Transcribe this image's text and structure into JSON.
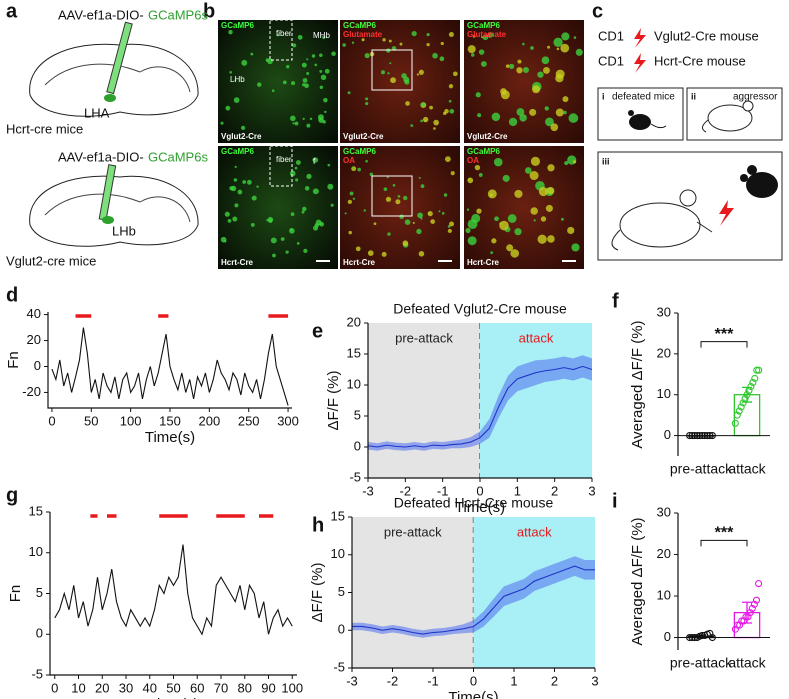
{
  "panel_labels": [
    "a",
    "b",
    "c",
    "d",
    "e",
    "f",
    "g",
    "h",
    "i"
  ],
  "panel_a": {
    "top_virus": "AAV-ef1a-DIO-",
    "top_indicator": "GCaMP6s",
    "top_region": "LHA",
    "top_mouse": "Hcrt-cre mice",
    "bottom_virus": "AAV-ef1a-DIO-",
    "bottom_indicator": "GCaMP6s",
    "bottom_region": "LHb",
    "bottom_mouse": "Vglut2-cre mice"
  },
  "panel_b": {
    "images": [
      {
        "labels": [
          "GCaMP6"
        ],
        "extra": [
          "fiber",
          "MHb",
          "LHb"
        ],
        "line": "Vglut2-Cre"
      },
      {
        "labels": [
          "GCaMP6",
          "Glutamate"
        ],
        "extra": [],
        "line": "Vglut2-Cre"
      },
      {
        "labels": [
          "GCaMP6",
          "Glutamate"
        ],
        "extra": [],
        "line": "Vglut2-Cre"
      },
      {
        "labels": [
          "GCaMP6"
        ],
        "extra": [
          "fiber",
          "f"
        ],
        "line": "Hcrt-Cre"
      },
      {
        "labels": [
          "GCaMP6",
          "OA"
        ],
        "extra": [],
        "line": "Hcrt-Cre"
      },
      {
        "labels": [
          "GCaMP6",
          "OA"
        ],
        "extra": [],
        "line": "Hcrt-Cre"
      }
    ]
  },
  "panel_c": {
    "row1_left": "CD1",
    "row1_right": "Vglut2-Cre mouse",
    "row2_left": "CD1",
    "row2_right": "Hcrt-Cre mouse",
    "box_i": "i",
    "box_i_text": "defeated mice",
    "box_ii": "ii",
    "box_ii_text": "aggressor",
    "box_iii": "iii"
  },
  "chart_data": [
    {
      "type": "line",
      "xlabel": "Time(s)",
      "ylabel": "Fn",
      "color": "#111111",
      "event_color": "#e8191c",
      "events": [
        [
          30,
          50
        ],
        [
          135,
          148
        ],
        [
          275,
          300
        ]
      ],
      "x": [
        0,
        5,
        10,
        15,
        20,
        25,
        30,
        35,
        40,
        45,
        50,
        55,
        60,
        65,
        70,
        75,
        80,
        85,
        90,
        95,
        100,
        105,
        110,
        115,
        120,
        125,
        130,
        135,
        140,
        145,
        150,
        155,
        160,
        165,
        170,
        175,
        180,
        185,
        190,
        195,
        200,
        205,
        210,
        215,
        220,
        225,
        230,
        235,
        240,
        245,
        250,
        255,
        260,
        265,
        270,
        275,
        280,
        285,
        290,
        295,
        300
      ],
      "values": [
        -2,
        -10,
        5,
        -15,
        -5,
        -20,
        -8,
        5,
        30,
        10,
        -20,
        -10,
        -25,
        -5,
        -15,
        -20,
        -8,
        -25,
        -10,
        -5,
        -20,
        -15,
        -5,
        -25,
        -10,
        0,
        -15,
        -5,
        10,
        25,
        0,
        -10,
        -18,
        -5,
        -20,
        -10,
        -25,
        -8,
        -15,
        -5,
        -20,
        -10,
        5,
        -5,
        -10,
        -18,
        -5,
        -10,
        -22,
        -5,
        -15,
        -20,
        -10,
        -25,
        -10,
        10,
        25,
        0,
        -10,
        -20,
        -30
      ],
      "xlim": [
        -5,
        305
      ],
      "xticks": [
        0,
        50,
        100,
        150,
        200,
        250,
        300
      ],
      "ylim": [
        -32,
        42
      ],
      "yticks": [
        -20,
        0,
        20,
        40
      ]
    },
    {
      "type": "line",
      "title": "Defeated Vglut2-Cre mouse",
      "xlabel": "Time(s)",
      "ylabel": "ΔF/F (%)",
      "color": "#1f35c8",
      "band_color": "#5a78f0",
      "regions": [
        {
          "label": "pre-attack",
          "range": [
            -3,
            0
          ],
          "color": "#e4e4e4",
          "label_color": "#222222"
        },
        {
          "label": "attack",
          "range": [
            0,
            3
          ],
          "color": "#a8f0f6",
          "label_color": "#e8191c"
        }
      ],
      "x": [
        -3,
        -2.75,
        -2.5,
        -2.25,
        -2,
        -1.75,
        -1.5,
        -1.25,
        -1,
        -0.75,
        -0.5,
        -0.25,
        0,
        0.25,
        0.5,
        0.75,
        1,
        1.25,
        1.5,
        1.75,
        2,
        2.25,
        2.5,
        2.75,
        3
      ],
      "values": [
        0.2,
        0,
        0.3,
        0.1,
        0,
        0.2,
        0,
        0.3,
        0.2,
        0.4,
        0.5,
        0.8,
        1.5,
        3,
        6.5,
        9.5,
        11,
        11.5,
        12,
        12.3,
        12.5,
        12.8,
        12.5,
        13,
        12.5
      ],
      "errors": [
        0.6,
        0.6,
        0.6,
        0.6,
        0.6,
        0.6,
        0.6,
        0.6,
        0.6,
        0.6,
        0.7,
        0.8,
        1,
        1.5,
        1.8,
        2,
        2,
        2,
        2,
        1.8,
        1.8,
        1.8,
        1.8,
        1.8,
        1.8
      ],
      "xlim": [
        -3,
        3
      ],
      "xticks": [
        -3,
        -2,
        -1,
        0,
        1,
        2,
        3
      ],
      "ylim": [
        -5,
        20
      ],
      "yticks": [
        -5,
        0,
        5,
        10,
        15,
        20
      ]
    },
    {
      "type": "bar",
      "ylabel": "Averaged ΔF/F (%)",
      "categories": [
        "pre-attack",
        "attack"
      ],
      "values": [
        0,
        10
      ],
      "errors": [
        0,
        1.8
      ],
      "colors": [
        "#111111",
        "#2ec82e"
      ],
      "significance": "***",
      "points": [
        [
          0,
          0,
          0,
          0,
          0,
          0,
          0,
          0,
          0,
          0
        ],
        [
          3,
          5,
          6,
          7,
          8,
          9,
          10,
          11,
          12,
          13,
          14,
          16,
          16
        ]
      ],
      "ylim": [
        -5,
        30
      ],
      "yticks": [
        0,
        10,
        20,
        30
      ]
    },
    {
      "type": "line",
      "xlabel": "Time(s)",
      "ylabel": "Fn",
      "color": "#111111",
      "event_color": "#e8191c",
      "events": [
        [
          15,
          18
        ],
        [
          22,
          26
        ],
        [
          44,
          56
        ],
        [
          68,
          80
        ],
        [
          86,
          92
        ]
      ],
      "x": [
        0,
        2,
        4,
        6,
        8,
        10,
        12,
        14,
        16,
        18,
        20,
        22,
        24,
        26,
        28,
        30,
        32,
        34,
        36,
        38,
        40,
        42,
        44,
        46,
        48,
        50,
        52,
        54,
        56,
        58,
        60,
        62,
        64,
        66,
        68,
        70,
        72,
        74,
        76,
        78,
        80,
        82,
        84,
        86,
        88,
        90,
        92,
        94,
        96,
        98,
        100
      ],
      "values": [
        2,
        3,
        5,
        3,
        6,
        2,
        4,
        1,
        3,
        7,
        3,
        5,
        8,
        4,
        2,
        1,
        3,
        2,
        1,
        2,
        1,
        3,
        6,
        5,
        7,
        6,
        7,
        11,
        5,
        2,
        1,
        0,
        2,
        1,
        6,
        7,
        6,
        5,
        4,
        6,
        3,
        6,
        5,
        2,
        4,
        0,
        2,
        3,
        1,
        2,
        1
      ],
      "xlim": [
        -2,
        102
      ],
      "xticks": [
        0,
        10,
        20,
        30,
        40,
        50,
        60,
        70,
        80,
        90,
        100
      ],
      "ylim": [
        -5,
        15
      ],
      "yticks": [
        -5,
        0,
        5,
        10,
        15
      ]
    },
    {
      "type": "line",
      "title": "Defeated Hcrt-Cre mouse",
      "xlabel": "Time(s)",
      "ylabel": "ΔF/F (%)",
      "color": "#1f35c8",
      "band_color": "#5a78f0",
      "regions": [
        {
          "label": "pre-attack",
          "range": [
            -3,
            0
          ],
          "color": "#e4e4e4",
          "label_color": "#222222"
        },
        {
          "label": "attack",
          "range": [
            0,
            3
          ],
          "color": "#a8f0f6",
          "label_color": "#e8191c"
        }
      ],
      "x": [
        -3,
        -2.75,
        -2.5,
        -2.25,
        -2,
        -1.75,
        -1.5,
        -1.25,
        -1,
        -0.75,
        -0.5,
        -0.25,
        0,
        0.25,
        0.5,
        0.75,
        1,
        1.25,
        1.5,
        1.75,
        2,
        2.25,
        2.5,
        2.75,
        3
      ],
      "values": [
        0.5,
        0.5,
        0.3,
        0,
        0.2,
        0,
        -0.3,
        -0.5,
        -0.3,
        -0.2,
        0,
        0.2,
        0.5,
        1.5,
        3,
        4.5,
        5,
        5.5,
        6.5,
        7,
        7.5,
        8,
        8.5,
        8,
        8
      ],
      "errors": [
        0.5,
        0.5,
        0.5,
        0.5,
        0.5,
        0.5,
        0.5,
        0.5,
        0.5,
        0.5,
        0.5,
        0.6,
        0.8,
        1,
        1.2,
        1.3,
        1.3,
        1.3,
        1.3,
        1.3,
        1.3,
        1.3,
        1.3,
        1.3,
        1.3
      ],
      "xlim": [
        -3,
        3
      ],
      "xticks": [
        -3,
        -2,
        -1,
        0,
        1,
        2,
        3
      ],
      "ylim": [
        -5,
        15
      ],
      "yticks": [
        -5,
        0,
        5,
        10,
        15
      ]
    },
    {
      "type": "bar",
      "ylabel": "Averaged ΔF/F (%)",
      "categories": [
        "pre-attack",
        "attack"
      ],
      "values": [
        0.3,
        6
      ],
      "errors": [
        0.3,
        2.5
      ],
      "colors": [
        "#111111",
        "#e619e6"
      ],
      "significance": "***",
      "points": [
        [
          0,
          0,
          0,
          0,
          0.3,
          0.5,
          0.5,
          0.8,
          1,
          0
        ],
        [
          2,
          3,
          3,
          4,
          4,
          5,
          5,
          6,
          7,
          8,
          9,
          13
        ]
      ],
      "ylim": [
        -3,
        30
      ],
      "yticks": [
        0,
        10,
        20,
        30
      ]
    }
  ]
}
